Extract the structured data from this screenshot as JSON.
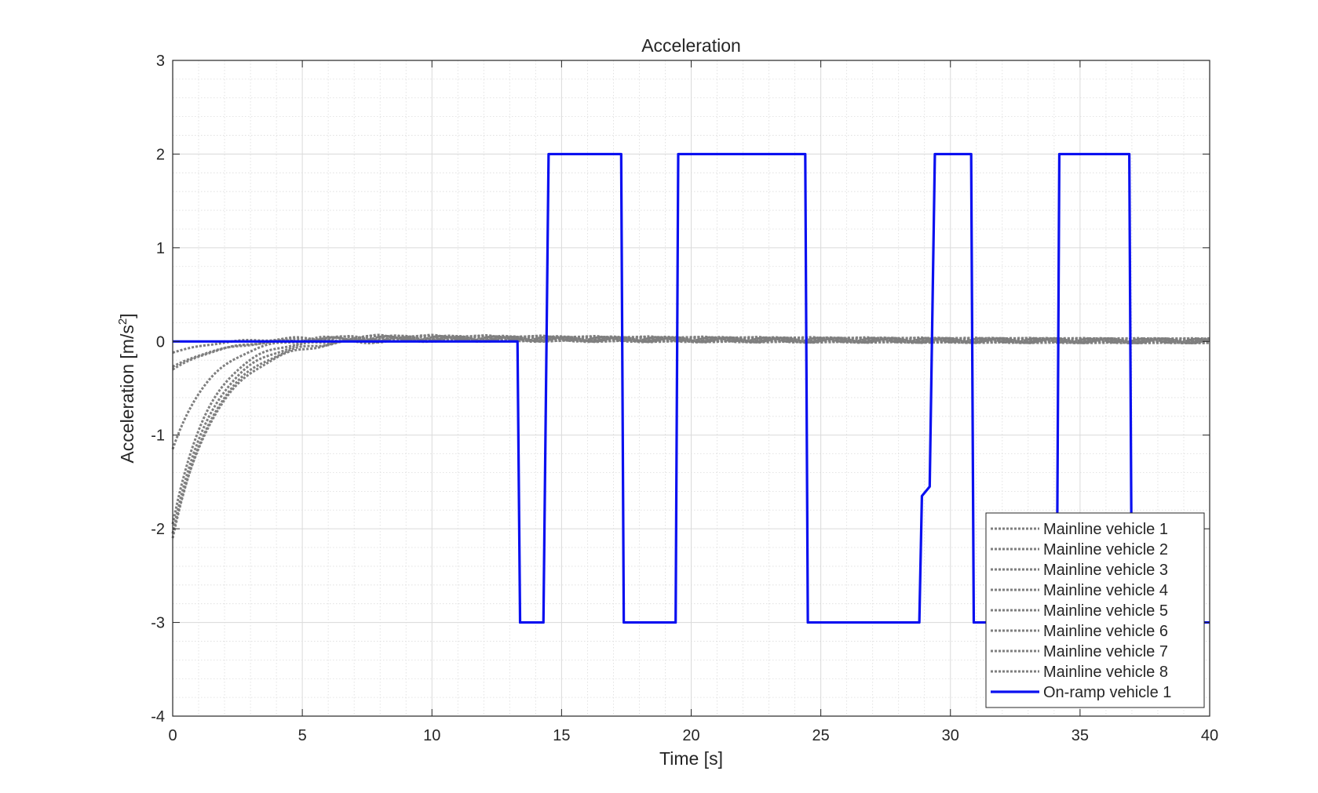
{
  "chart_data": {
    "type": "line",
    "title": "Acceleration",
    "xlabel": "Time [s]",
    "ylabel": {
      "text": "Acceleration  [m/s",
      "sup": "2",
      "suffix": "]"
    },
    "xlim": [
      0,
      40
    ],
    "ylim": [
      -4,
      3
    ],
    "xticks": [
      0,
      5,
      10,
      15,
      20,
      25,
      30,
      35,
      40
    ],
    "yticks": [
      -4,
      -3,
      -2,
      -1,
      0,
      1,
      2,
      3
    ],
    "x_minor_step": 1,
    "y_minor_step": 0.2,
    "grid": true,
    "minor_grid": true,
    "legend_position": "bottom-right",
    "colors": {
      "mainline": "#7f7f7f",
      "onramp": "#0a10f0"
    },
    "series": [
      {
        "name": "Mainline vehicle 1",
        "style": "dotted",
        "a0": -0.12,
        "tau": 1.9,
        "overshoot": 0.06
      },
      {
        "name": "Mainline vehicle 2",
        "style": "dotted",
        "a0": -0.3,
        "tau": 2.0,
        "overshoot": 0.07
      },
      {
        "name": "Mainline vehicle 3",
        "style": "dotted",
        "a0": -0.27,
        "tau": 2.1,
        "overshoot": 0.06
      },
      {
        "name": "Mainline vehicle 4",
        "style": "dotted",
        "a0": -1.15,
        "tau": 1.5,
        "overshoot": 0.08
      },
      {
        "name": "Mainline vehicle 5",
        "style": "dotted",
        "a0": -1.95,
        "tau": 1.45,
        "overshoot": 0.07
      },
      {
        "name": "Mainline vehicle 6",
        "style": "dotted",
        "a0": -2.05,
        "tau": 1.55,
        "overshoot": 0.06
      },
      {
        "name": "Mainline vehicle 7",
        "style": "dotted",
        "a0": -2.1,
        "tau": 1.65,
        "overshoot": 0.05
      },
      {
        "name": "Mainline vehicle 8",
        "style": "dotted",
        "a0": -2.05,
        "tau": 1.75,
        "overshoot": 0.05
      },
      {
        "name": "On-ramp vehicle 1",
        "style": "solid",
        "x": [
          0,
          13.3,
          13.4,
          14.3,
          14.5,
          17.3,
          17.4,
          19.4,
          19.5,
          24.4,
          24.5,
          28.8,
          28.9,
          29.2,
          29.4,
          30.8,
          30.9,
          34.1,
          34.2,
          36.9,
          37.0,
          40
        ],
        "y": [
          0,
          0,
          -3,
          -3,
          2,
          2,
          -3,
          -3,
          2,
          2,
          -3,
          -3,
          -1.65,
          -1.55,
          2,
          2,
          -3,
          -3,
          2,
          2,
          -3,
          -3
        ]
      }
    ]
  }
}
